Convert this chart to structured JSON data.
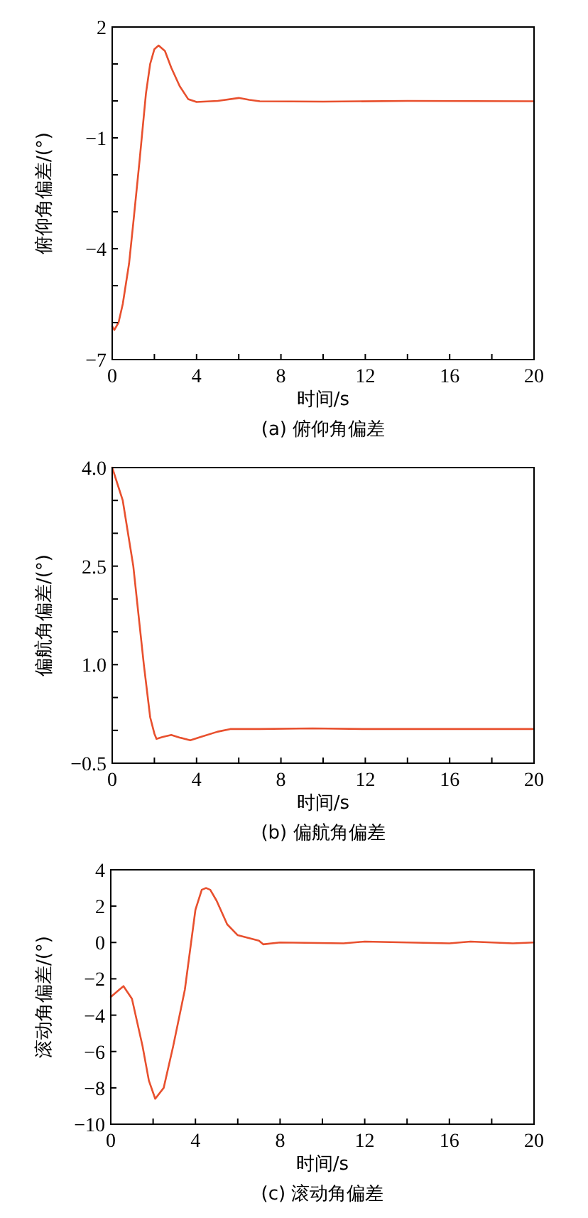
{
  "chart_data": [
    {
      "type": "line",
      "title": "(a) 俯仰角偏差",
      "xlabel": "时间/s",
      "ylabel": "俯仰角偏差/(°)",
      "xlim": [
        0,
        20
      ],
      "ylim": [
        -7,
        2
      ],
      "xticks": [
        0,
        {
          "value": 2,
          "label": null
        },
        4,
        {
          "value": 6,
          "label": null
        },
        8,
        {
          "value": 10,
          "label": null
        },
        12,
        {
          "value": 14,
          "label": null
        },
        16,
        {
          "value": 18,
          "label": null
        },
        20
      ],
      "yticks": [
        -7,
        {
          "value": -6,
          "label": null
        },
        {
          "value": -5,
          "label": null
        },
        -4,
        {
          "value": -3,
          "label": null
        },
        {
          "value": -2,
          "label": null
        },
        -1,
        {
          "value": 0,
          "label": null
        },
        {
          "value": 1,
          "label": null
        },
        2
      ],
      "grid": false,
      "series": [
        {
          "color": "#e8502e",
          "x": [
            0,
            0.1,
            0.3,
            0.5,
            0.8,
            1.0,
            1.3,
            1.6,
            1.8,
            2.0,
            2.2,
            2.5,
            2.8,
            3.2,
            3.6,
            4.0,
            5.0,
            6.0,
            6.5,
            7.0,
            10.0,
            14.0,
            20.0
          ],
          "values": [
            -6.1,
            -6.2,
            -6.0,
            -5.5,
            -4.4,
            -3.3,
            -1.6,
            0.2,
            1.0,
            1.4,
            1.5,
            1.35,
            0.9,
            0.4,
            0.05,
            -0.03,
            0.0,
            0.08,
            0.03,
            -0.01,
            -0.02,
            0.0,
            -0.01
          ]
        }
      ]
    },
    {
      "type": "line",
      "title": "(b) 偏航角偏差",
      "xlabel": "时间/s",
      "ylabel": "偏航角偏差/(°)",
      "xlim": [
        0,
        20
      ],
      "ylim": [
        -0.5,
        4.0
      ],
      "xticks": [
        0,
        {
          "value": 2,
          "label": null
        },
        4,
        {
          "value": 6,
          "label": null
        },
        8,
        {
          "value": 10,
          "label": null
        },
        12,
        {
          "value": 14,
          "label": null
        },
        16,
        {
          "value": 18,
          "label": null
        },
        20
      ],
      "yticks": [
        {
          "value": -0.5,
          "label": "−0.5"
        },
        {
          "value": 0,
          "label": null
        },
        {
          "value": 0.5,
          "label": null
        },
        {
          "value": 1.0,
          "label": "1.0"
        },
        {
          "value": 1.5,
          "label": null
        },
        {
          "value": 2.0,
          "label": null
        },
        {
          "value": 2.5,
          "label": "2.5"
        },
        {
          "value": 3.0,
          "label": null
        },
        {
          "value": 3.5,
          "label": null
        },
        {
          "value": 4.0,
          "label": "4.0"
        }
      ],
      "grid": false,
      "series": [
        {
          "color": "#e8502e",
          "x": [
            0,
            0.2,
            0.5,
            0.8,
            1.0,
            1.3,
            1.5,
            1.8,
            2.0,
            2.1,
            2.4,
            2.8,
            3.2,
            3.7,
            4.2,
            5.0,
            5.6,
            7.0,
            9.5,
            12.0,
            16.0,
            20.0
          ],
          "values": [
            4.0,
            3.8,
            3.5,
            2.9,
            2.5,
            1.6,
            1.0,
            0.2,
            -0.05,
            -0.13,
            -0.1,
            -0.07,
            -0.11,
            -0.15,
            -0.1,
            -0.02,
            0.02,
            0.02,
            0.03,
            0.02,
            0.02,
            0.02
          ]
        }
      ]
    },
    {
      "type": "line",
      "title": "(c) 滚动角偏差",
      "xlabel": "时间/s",
      "ylabel": "滚动角偏差/(°)",
      "xlim": [
        0,
        20
      ],
      "ylim": [
        -10,
        4
      ],
      "xticks": [
        0,
        {
          "value": 2,
          "label": null
        },
        4,
        {
          "value": 6,
          "label": null
        },
        8,
        {
          "value": 10,
          "label": null
        },
        12,
        {
          "value": 14,
          "label": null
        },
        16,
        {
          "value": 18,
          "label": null
        },
        20
      ],
      "yticks": [
        {
          "value": -10,
          "label": "−10"
        },
        {
          "value": -8,
          "label": "−8"
        },
        {
          "value": -6,
          "label": "−6"
        },
        {
          "value": -4,
          "label": "−4"
        },
        {
          "value": -2,
          "label": "−2"
        },
        0,
        2,
        4
      ],
      "grid": false,
      "series": [
        {
          "color": "#e8502e",
          "x": [
            0,
            0.3,
            0.6,
            1.0,
            1.5,
            1.8,
            2.1,
            2.5,
            2.95,
            3.5,
            4.0,
            4.3,
            4.5,
            4.7,
            5.0,
            5.5,
            6.0,
            7.0,
            7.2,
            8.0,
            11.0,
            12.0,
            16.0,
            17.0,
            19.0,
            20.0
          ],
          "values": [
            -3.0,
            -2.7,
            -2.4,
            -3.1,
            -5.7,
            -7.6,
            -8.6,
            -8.0,
            -5.7,
            -2.6,
            1.8,
            2.9,
            3.0,
            2.9,
            2.3,
            1.0,
            0.4,
            0.1,
            -0.1,
            0.0,
            -0.05,
            0.05,
            -0.05,
            0.05,
            -0.05,
            0.0
          ]
        }
      ]
    }
  ]
}
